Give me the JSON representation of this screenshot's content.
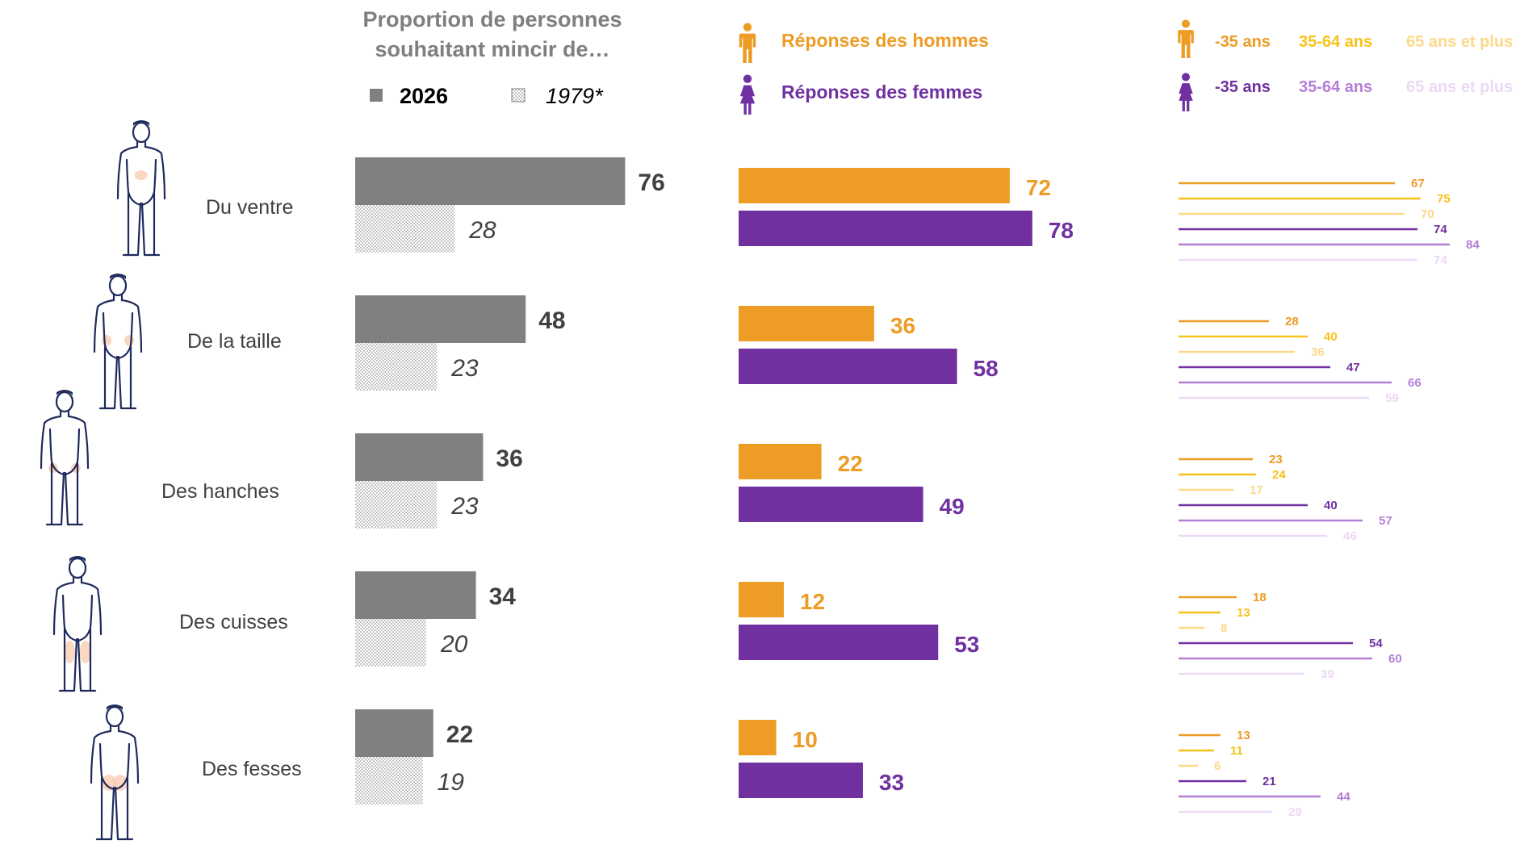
{
  "header": {
    "title_line1": "Proportion de personnes",
    "title_line2": "souhaitant mincir de…",
    "legend_2026": "2026",
    "legend_1979": "1979*",
    "legend_men": "Réponses des hommes",
    "legend_women": "Réponses des femmes",
    "age_men": [
      "-35 ans",
      "35-64 ans",
      "65 ans et plus"
    ],
    "age_women": [
      "-35 ans",
      "35-64 ans",
      "65 ans et plus"
    ],
    "icons": {
      "men": "man-icon",
      "women": "woman-icon",
      "body": "body-figure-icon"
    }
  },
  "colors": {
    "bar2026": "#808080",
    "bar1979": "#bfbfbf",
    "men": "#ED9C25",
    "women": "#7030A0",
    "men_age": [
      "#ED9C25",
      "#F7C21A",
      "#FCD98A"
    ],
    "women_age": [
      "#7030A0",
      "#B47FD6",
      "#EBD9F6"
    ],
    "highlight": "#F9CDB2",
    "figure": "#1F2A5C"
  },
  "chart_data": [
    {
      "type": "bar",
      "title": "Proportion de personnes souhaitant mincir de…",
      "categories": [
        "Du ventre",
        "De la taille",
        "Des hanches",
        "Des cuisses",
        "Des fesses"
      ],
      "series": [
        {
          "name": "2026",
          "values": [
            76,
            48,
            36,
            34,
            22
          ]
        },
        {
          "name": "1979*",
          "values": [
            28,
            23,
            23,
            20,
            19
          ]
        }
      ]
    },
    {
      "type": "bar",
      "categories": [
        "Du ventre",
        "De la taille",
        "Des hanches",
        "Des cuisses",
        "Des fesses"
      ],
      "series": [
        {
          "name": "Réponses des hommes",
          "values": [
            72,
            36,
            22,
            12,
            10
          ]
        },
        {
          "name": "Réponses des femmes",
          "values": [
            78,
            58,
            49,
            53,
            33
          ]
        }
      ]
    },
    {
      "type": "bar",
      "categories": [
        "Du ventre",
        "De la taille",
        "Des hanches",
        "Des cuisses",
        "Des fesses"
      ],
      "series": [
        {
          "name": "-35 ans",
          "group": "hommes",
          "values": [
            67,
            28,
            23,
            18,
            13
          ]
        },
        {
          "name": "35-64 ans",
          "group": "hommes",
          "values": [
            75,
            40,
            24,
            13,
            11
          ]
        },
        {
          "name": "65 ans et plus",
          "group": "hommes",
          "values": [
            70,
            36,
            17,
            8,
            6
          ]
        },
        {
          "name": "-35 ans",
          "group": "femmes",
          "values": [
            74,
            47,
            40,
            54,
            21
          ]
        },
        {
          "name": "35-64 ans",
          "group": "femmes",
          "values": [
            84,
            66,
            57,
            60,
            44
          ]
        },
        {
          "name": "65 ans et plus",
          "group": "femmes",
          "values": [
            74,
            59,
            46,
            39,
            29
          ]
        }
      ]
    }
  ]
}
